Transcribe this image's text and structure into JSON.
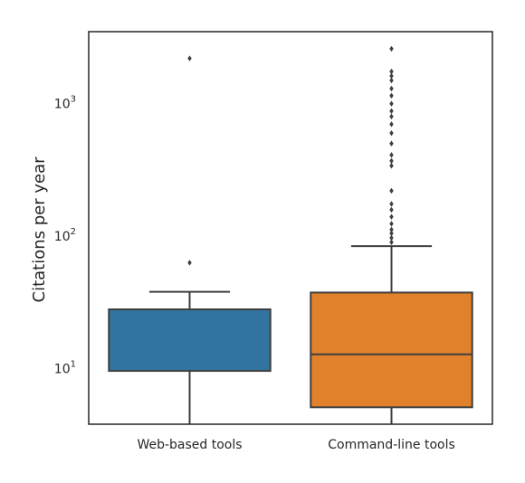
{
  "chart_data": {
    "type": "box",
    "ylabel": "Citations per year",
    "yscale": "log",
    "ylim": [
      3.8,
      3500
    ],
    "categories": [
      "Web-based tools",
      "Command-line tools"
    ],
    "y_ticks": [
      {
        "value": 10,
        "base": "10",
        "exp": "1"
      },
      {
        "value": 100,
        "base": "10",
        "exp": "2"
      },
      {
        "value": 1000,
        "base": "10",
        "exp": "3"
      }
    ],
    "boxes": [
      {
        "category": "Web-based tools",
        "color": "#3274a1",
        "whisker_low": 3.8,
        "q1": 9.6,
        "median": 28,
        "q3": 28,
        "whisker_high": 38,
        "outliers": [
          63,
          2200
        ]
      },
      {
        "category": "Command-line tools",
        "color": "#e1812c",
        "whisker_low": 3.8,
        "q1": 5.1,
        "median": 12.8,
        "q3": 37.5,
        "whisker_high": 84,
        "outliers": [
          90,
          97,
          105,
          112,
          124,
          140,
          158,
          175,
          220,
          340,
          370,
          410,
          500,
          600,
          700,
          800,
          880,
          1000,
          1150,
          1300,
          1500,
          1620,
          1750,
          2600
        ]
      }
    ],
    "grid": false,
    "legend": "none"
  }
}
